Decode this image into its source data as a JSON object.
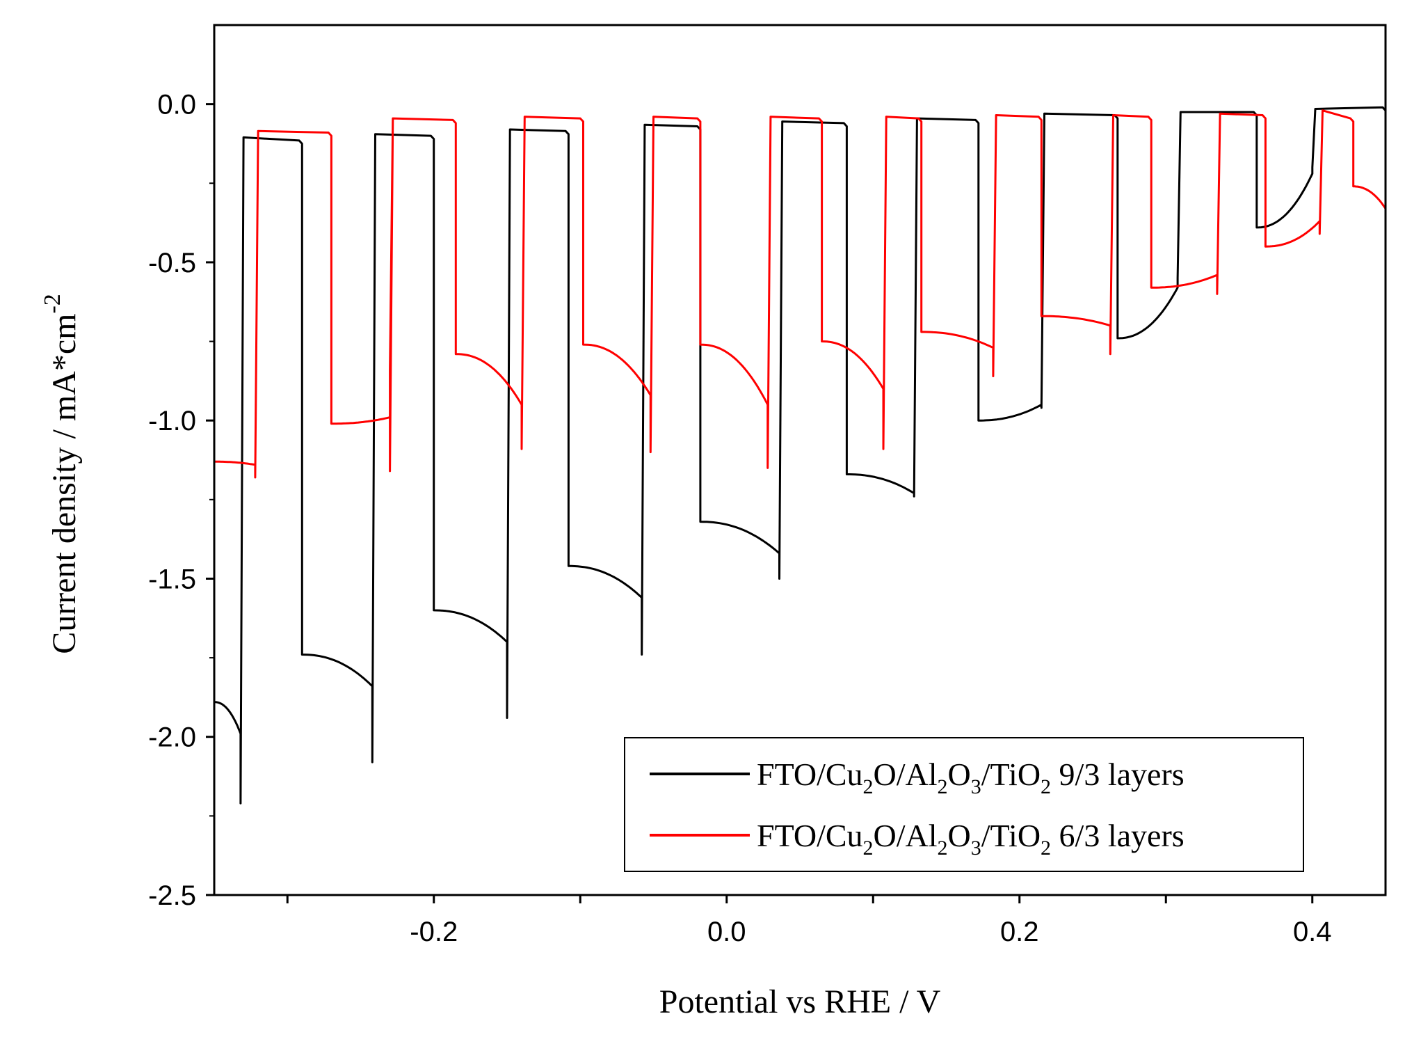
{
  "chart_data": {
    "type": "line",
    "title": "",
    "xlabel": "Potential vs RHE / V",
    "ylabel": "Current density / mA*cm",
    "ylabel_superscript": "-2",
    "xlim": [
      -0.35,
      0.45
    ],
    "ylim": [
      -2.5,
      0.25
    ],
    "xticks": [
      -0.3,
      -0.2,
      -0.1,
      0.0,
      0.1,
      0.2,
      0.3,
      0.4
    ],
    "xtick_labels": [
      "-0.2",
      "0.0",
      "0.2",
      "0.4"
    ],
    "xtick_label_values": [
      -0.2,
      0.0,
      0.2,
      0.4
    ],
    "yticks": [
      -2.5,
      -2.0,
      -1.5,
      -1.0,
      -0.5,
      0.0
    ],
    "ytick_labels": [
      "-2.5",
      "-2.0",
      "-1.5",
      "-1.0",
      "-0.5",
      "0.0"
    ],
    "legend_position": "bottom-right",
    "series": [
      {
        "name": "FTO/Cu2O/Al2O3/TiO2 9/3 layers",
        "legend_parts": [
          "FTO/Cu",
          "2",
          "O/Al",
          "2",
          "O",
          "3",
          "/TiO",
          "2",
          " 9/3 layers"
        ],
        "color": "#000000",
        "dark_current": [
          [
            -0.332,
            -0.105
          ],
          [
            -0.29,
            -0.115
          ],
          [
            -0.242,
            -0.095
          ],
          [
            -0.2,
            -0.1
          ],
          [
            -0.15,
            -0.08
          ],
          [
            -0.108,
            -0.085
          ],
          [
            -0.058,
            -0.065
          ],
          [
            -0.018,
            -0.07
          ],
          [
            0.036,
            -0.055
          ],
          [
            0.082,
            -0.06
          ],
          [
            0.128,
            -0.045
          ],
          [
            0.172,
            -0.05
          ],
          [
            0.215,
            -0.03
          ],
          [
            0.267,
            -0.035
          ],
          [
            0.308,
            -0.025
          ],
          [
            0.362,
            -0.025
          ],
          [
            0.4,
            -0.015
          ],
          [
            0.45,
            -0.01
          ]
        ],
        "light_segments": [
          {
            "start": -0.35,
            "end": -0.332,
            "j0": -1.89,
            "j1": -1.99,
            "spike": -2.21
          },
          {
            "start": -0.29,
            "end": -0.242,
            "j0": -1.74,
            "j1": -1.84,
            "spike": -2.08
          },
          {
            "start": -0.2,
            "end": -0.15,
            "j0": -1.6,
            "j1": -1.7,
            "spike": -1.94
          },
          {
            "start": -0.108,
            "end": -0.058,
            "j0": -1.46,
            "j1": -1.56,
            "spike": -1.74
          },
          {
            "start": -0.018,
            "end": 0.036,
            "j0": -1.32,
            "j1": -1.42,
            "spike": -1.5
          },
          {
            "start": 0.082,
            "end": 0.128,
            "j0": -1.17,
            "j1": -1.23,
            "spike": -1.24
          },
          {
            "start": 0.172,
            "end": 0.215,
            "j0": -1.0,
            "j1": -0.95,
            "spike": -0.96
          },
          {
            "start": 0.267,
            "end": 0.308,
            "j0": -0.74,
            "j1": -0.58,
            "spike": -0.55
          },
          {
            "start": 0.362,
            "end": 0.4,
            "j0": -0.39,
            "j1": -0.22,
            "spike": -0.2
          }
        ]
      },
      {
        "name": "FTO/Cu2O/Al2O3/TiO2 6/3 layers",
        "legend_parts": [
          "FTO/Cu",
          "2",
          "O/Al",
          "2",
          "O",
          "3",
          "/TiO",
          "2",
          " 6/3 layers"
        ],
        "color": "#ff0000",
        "dark_current": [
          [
            -0.322,
            -0.085
          ],
          [
            -0.27,
            -0.09
          ],
          [
            -0.23,
            -0.045
          ],
          [
            -0.185,
            -0.05
          ],
          [
            -0.14,
            -0.04
          ],
          [
            -0.098,
            -0.045
          ],
          [
            -0.052,
            -0.04
          ],
          [
            -0.018,
            -0.045
          ],
          [
            0.028,
            -0.04
          ],
          [
            0.065,
            -0.045
          ],
          [
            0.107,
            -0.04
          ],
          [
            0.133,
            -0.045
          ],
          [
            0.182,
            -0.035
          ],
          [
            0.215,
            -0.04
          ],
          [
            0.262,
            -0.035
          ],
          [
            0.29,
            -0.04
          ],
          [
            0.335,
            -0.03
          ],
          [
            0.368,
            -0.035
          ],
          [
            0.405,
            -0.02
          ],
          [
            0.428,
            -0.045
          ],
          [
            0.45,
            -0.04
          ]
        ],
        "light_segments": [
          {
            "start": -0.35,
            "end": -0.322,
            "j0": -1.13,
            "j1": -1.14,
            "spike": -1.18
          },
          {
            "start": -0.27,
            "end": -0.23,
            "j0": -1.01,
            "j1": -0.99,
            "spike": -1.16
          },
          {
            "start": -0.23,
            "end": -0.23,
            "j0": -0.84,
            "j1": -0.95,
            "spike": -1.16
          },
          {
            "start": -0.185,
            "end": -0.14,
            "j0": -0.79,
            "j1": -0.95,
            "spike": -1.09
          },
          {
            "start": -0.098,
            "end": -0.052,
            "j0": -0.76,
            "j1": -0.92,
            "spike": -1.1
          },
          {
            "start": -0.018,
            "end": 0.028,
            "j0": -0.76,
            "j1": -0.95,
            "spike": -1.15
          },
          {
            "start": 0.065,
            "end": 0.107,
            "j0": -0.75,
            "j1": -0.9,
            "spike": -1.09
          },
          {
            "start": 0.133,
            "end": 0.182,
            "j0": -0.72,
            "j1": -0.77,
            "spike": -0.86
          },
          {
            "start": 0.215,
            "end": 0.262,
            "j0": -0.67,
            "j1": -0.7,
            "spike": -0.79
          },
          {
            "start": 0.29,
            "end": 0.335,
            "j0": -0.58,
            "j1": -0.54,
            "spike": -0.6
          },
          {
            "start": 0.368,
            "end": 0.405,
            "j0": -0.45,
            "j1": -0.37,
            "spike": -0.41
          },
          {
            "start": 0.428,
            "end": 0.45,
            "j0": -0.26,
            "j1": -0.33,
            "spike": -0.45
          }
        ]
      }
    ]
  }
}
